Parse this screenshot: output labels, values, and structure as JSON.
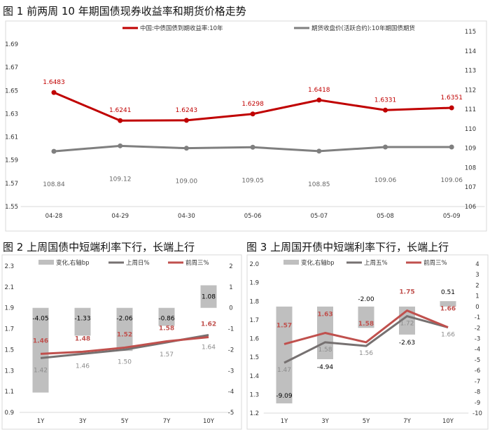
{
  "chart_data": [
    {
      "type": "line",
      "title": "图 1  前两周 10 年期国债现券收益率和期货价格走势",
      "categories": [
        "04-28",
        "04-29",
        "04-30",
        "05-06",
        "05-07",
        "05-08",
        "05-09"
      ],
      "left_axis": {
        "ylim": [
          1.55,
          1.69
        ],
        "ticks": [
          "1.55",
          "1.57",
          "1.59",
          "1.61",
          "1.63",
          "1.65",
          "1.67",
          "1.69"
        ]
      },
      "right_axis": {
        "ylim": [
          106,
          115
        ],
        "ticks": [
          "106",
          "107",
          "108",
          "109",
          "110",
          "111",
          "112",
          "113",
          "114",
          "115"
        ]
      },
      "legend_position": "top",
      "grid": false,
      "series": [
        {
          "name": "中国:中债国债到期收益率:10年",
          "axis": "left",
          "color": "#c00000",
          "values": [
            1.6483,
            1.6241,
            1.6243,
            1.6298,
            1.6418,
            1.6331,
            1.6351
          ],
          "labels": [
            "1.6483",
            "1.6241",
            "1.6243",
            "1.6298",
            "1.6418",
            "1.6331",
            "1.6351"
          ]
        },
        {
          "name": "期货收盘价(活跃合约):10年期国债期货",
          "axis": "right",
          "color": "#7f7f7f",
          "values": [
            108.84,
            109.12,
            109.0,
            109.05,
            108.85,
            109.06,
            109.06
          ],
          "labels": [
            "108.84",
            "109.12",
            "109.00",
            "109.05",
            "108.85",
            "109.06",
            "109.06"
          ]
        }
      ]
    },
    {
      "type": "bar+line",
      "title": "图 2  上周国债中短端利率下行，长端上行",
      "categories": [
        "1Y",
        "3Y",
        "5Y",
        "7Y",
        "10Y"
      ],
      "left_axis": {
        "ylim": [
          0.9,
          2.3
        ],
        "ticks": [
          "0.9",
          "1.1",
          "1.3",
          "1.5",
          "1.7",
          "1.9",
          "2.1",
          "2.3"
        ]
      },
      "right_axis": {
        "ylim": [
          -5,
          2
        ],
        "ticks": [
          "-5",
          "-4",
          "-3",
          "-2",
          "-1",
          "0",
          "1",
          "2"
        ]
      },
      "legend_position": "top",
      "grid": false,
      "bars": {
        "name": "变化,右轴bp",
        "color": "#bfbfbf",
        "values": [
          -4.05,
          -1.33,
          -2.06,
          -0.86,
          1.08
        ],
        "labels": [
          "-4.05",
          "-1.33",
          "-2.06",
          "-0.86",
          "1.08"
        ]
      },
      "series": [
        {
          "name": "上周日%",
          "color": "#767171",
          "values": [
            1.42,
            1.46,
            1.5,
            1.57,
            1.64
          ],
          "labels": [
            "1.42",
            "1.46",
            "1.50",
            "1.57",
            "1.64"
          ]
        },
        {
          "name": "前周三%",
          "color": "#c0504d",
          "values": [
            1.46,
            1.48,
            1.52,
            1.58,
            1.62
          ],
          "labels": [
            "1.46",
            "1.48",
            "1.52",
            "1.58",
            "1.62"
          ]
        }
      ]
    },
    {
      "type": "bar+line",
      "title": "图 3  上周国开债中短端利率下行，长端上行",
      "categories": [
        "1Y",
        "3Y",
        "5Y",
        "7Y",
        "10Y"
      ],
      "left_axis": {
        "ylim": [
          1.2,
          2.0
        ],
        "ticks": [
          "1.2",
          "1.3",
          "1.4",
          "1.5",
          "1.6",
          "1.7",
          "1.8",
          "1.9",
          "2.0"
        ]
      },
      "right_axis": {
        "ylim": [
          -10,
          4
        ],
        "ticks": [
          "-10",
          "-9",
          "-8",
          "-7",
          "-6",
          "-5",
          "-4",
          "-3",
          "-2",
          "-1",
          "0",
          "1",
          "2",
          "3",
          "4"
        ]
      },
      "legend_position": "top",
      "grid": false,
      "bars": {
        "name": "变化,右轴bp",
        "color": "#bfbfbf",
        "values": [
          -9.09,
          -4.94,
          -2.0,
          -2.63,
          0.51
        ],
        "labels": [
          "-9.09",
          "-4.94",
          "-2.00",
          "-2.63",
          "0.51"
        ]
      },
      "series": [
        {
          "name": "上周五%",
          "color": "#767171",
          "values": [
            1.47,
            1.58,
            1.56,
            1.72,
            1.66
          ],
          "labels": [
            "1.47",
            "1.58",
            "1.56",
            "1.72",
            "1.66"
          ]
        },
        {
          "name": "前周三%",
          "color": "#c0504d",
          "values": [
            1.57,
            1.63,
            1.58,
            1.75,
            1.66
          ],
          "labels": [
            "1.57",
            "1.63",
            "1.58",
            "1.75",
            "1.66"
          ]
        }
      ]
    }
  ]
}
